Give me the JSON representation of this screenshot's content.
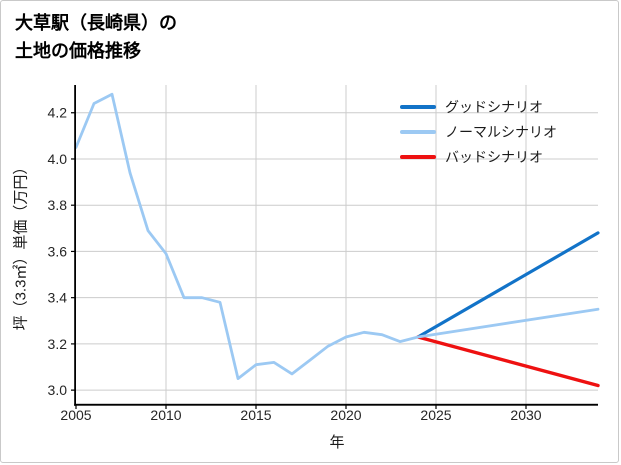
{
  "header": {
    "title_line1": "大草駅（長崎県）の",
    "title_line2": "土地の価格推移"
  },
  "chart_data": {
    "type": "line",
    "title": "大草駅（長崎県）の土地の価格推移",
    "xlabel": "年",
    "ylabel": "坪（3.3㎡）単価（万円）",
    "unit": "万円/坪",
    "xlim": [
      2005,
      2034
    ],
    "ylim": [
      2.94,
      4.32
    ],
    "x_ticks": [
      2005,
      2010,
      2015,
      2020,
      2025,
      2030
    ],
    "y_ticks": [
      3.0,
      3.2,
      3.4,
      3.6,
      3.8,
      4.0,
      4.2
    ],
    "y_tick_labels": [
      "3.0",
      "3.2",
      "3.4",
      "3.6",
      "3.8",
      "4.0",
      "4.2"
    ],
    "grid": true,
    "grid_color": "#cccccc",
    "axis_color": "#000000",
    "tick_label_color": "#262626",
    "legend_position": "upper right",
    "series": [
      {
        "key": "good",
        "name": "グッドシナリオ",
        "color": "#1273c8",
        "line_width": 3.2,
        "x": [
          2024,
          2034
        ],
        "values": [
          3.23,
          3.68
        ]
      },
      {
        "key": "normal",
        "name": "ノーマルシナリオ",
        "color": "#9cc9f3",
        "line_width": 2.8,
        "x": [
          2005,
          2006,
          2007,
          2008,
          2009,
          2010,
          2011,
          2012,
          2013,
          2014,
          2015,
          2016,
          2017,
          2018,
          2019,
          2020,
          2021,
          2022,
          2023,
          2024,
          2034
        ],
        "values": [
          4.05,
          4.24,
          4.28,
          3.94,
          3.69,
          3.59,
          3.4,
          3.4,
          3.38,
          3.05,
          3.11,
          3.12,
          3.07,
          3.13,
          3.19,
          3.23,
          3.25,
          3.24,
          3.21,
          3.23,
          3.35
        ]
      },
      {
        "key": "bad",
        "name": "バッドシナリオ",
        "color": "#ee1111",
        "line_width": 3.4,
        "x": [
          2024,
          2034
        ],
        "values": [
          3.23,
          3.02
        ]
      }
    ],
    "draw_order": [
      "good",
      "bad",
      "normal"
    ]
  }
}
